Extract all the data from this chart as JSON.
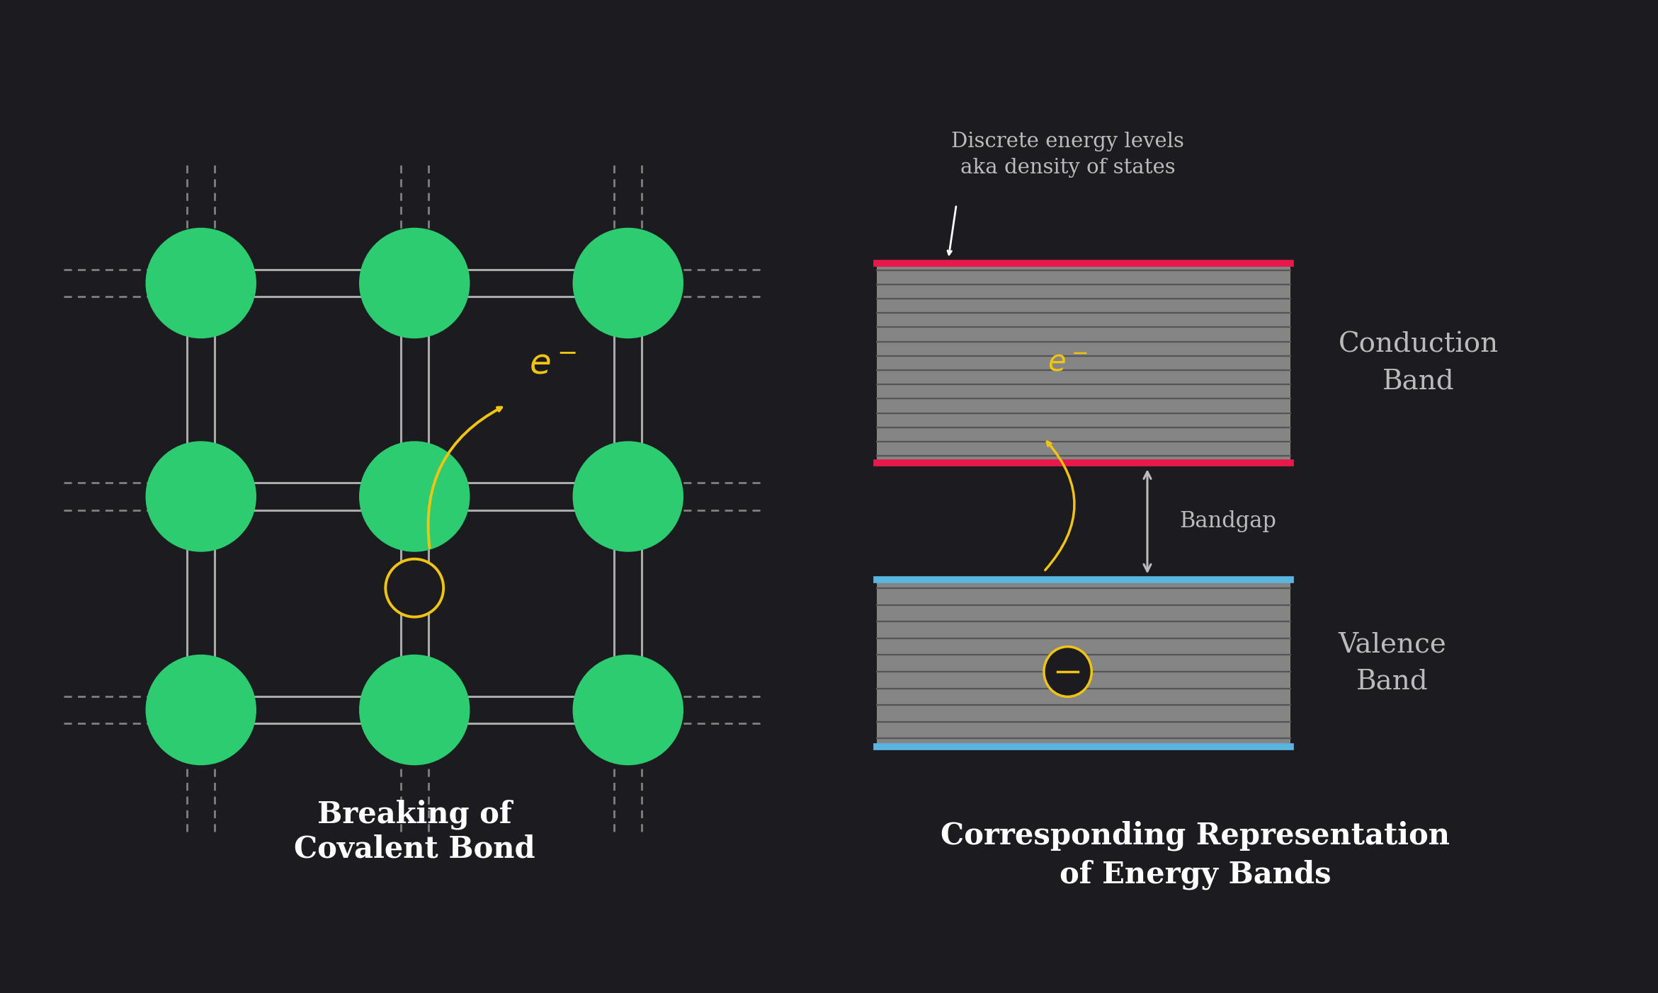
{
  "bg_color": "#1c1c20",
  "fig_width": 23.41,
  "fig_height": 14.03,
  "atom_color": "#2ecc71",
  "bond_color": "#aaaaaa",
  "dashed_color": "#808080",
  "electron_color": "#f1c40f",
  "hole_color": "#f1c40f",
  "title_color": "#ffffff",
  "conduction_border": "#e8184a",
  "valence_border": "#5ab4e0",
  "text_color": "#bbbbbb",
  "band_fill": "#858585",
  "band_line_dark": "#555555",
  "title1": "Breaking of\nCovalent Bond",
  "title2": "Corresponding Representation\nof Energy Bands",
  "cb_label": "Conduction\nBand",
  "vb_label": "Valence\nBand",
  "bandgap_label": "Bandgap",
  "discrete_label": "Discrete energy levels\naka density of states"
}
